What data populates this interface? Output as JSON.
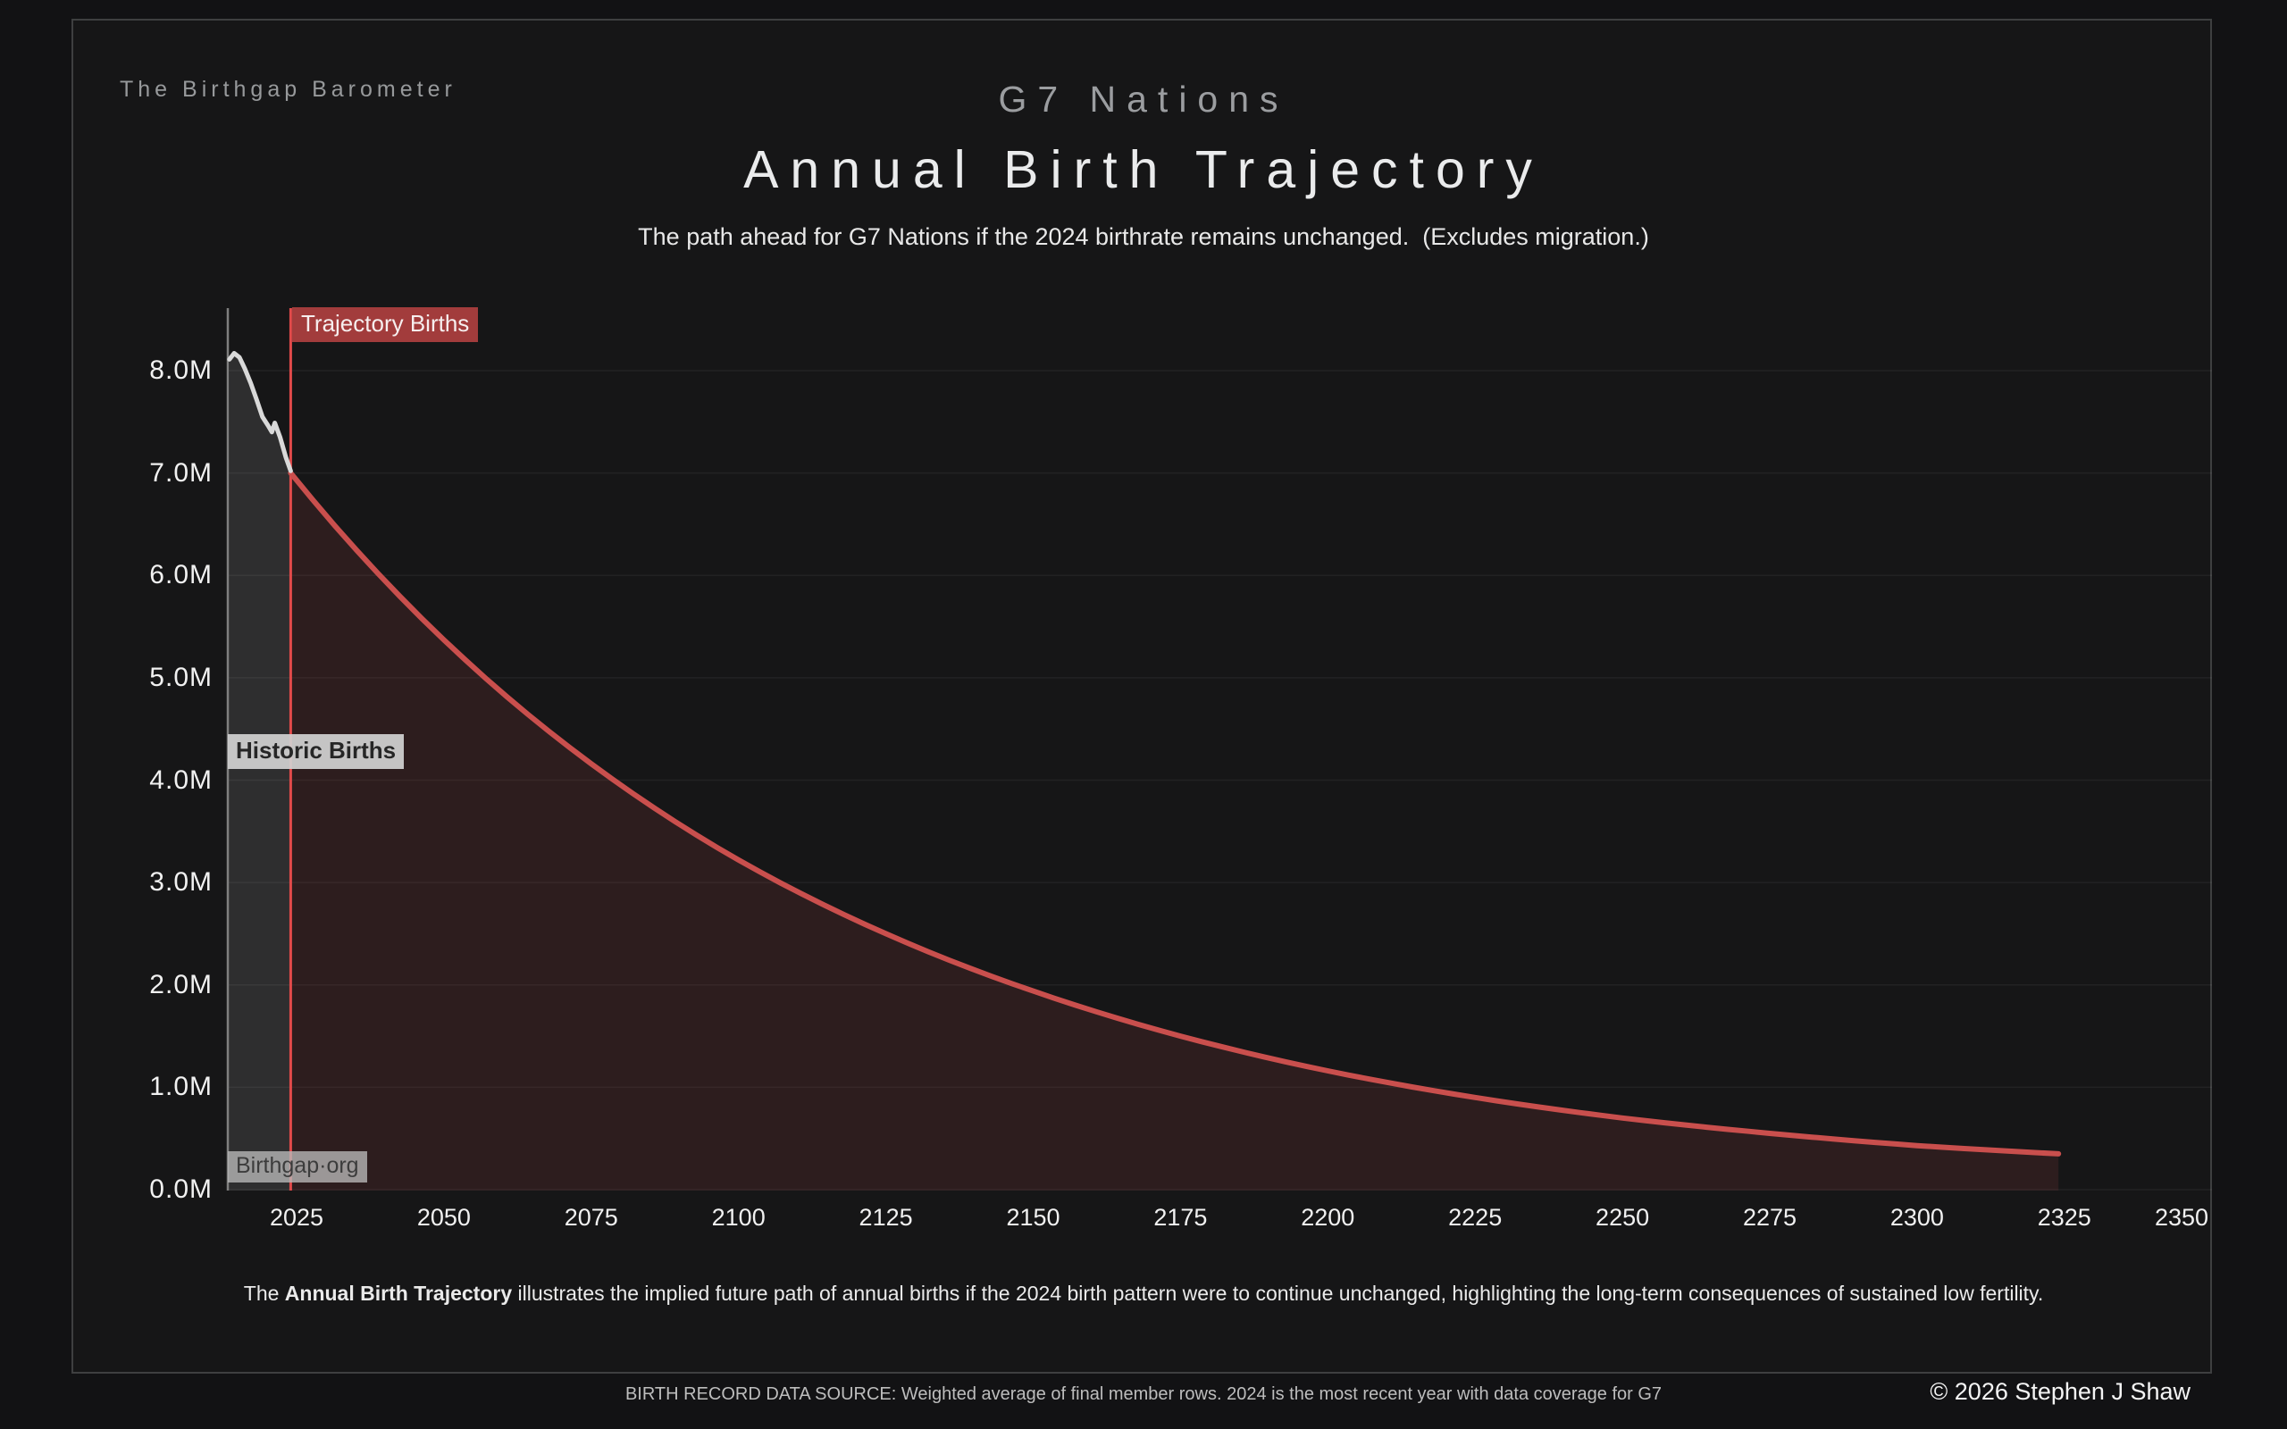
{
  "header": {
    "brand": "The Birthgap Barometer",
    "suptitle": "G7 Nations",
    "title": "Annual Birth Trajectory",
    "subtitle": "The path ahead for G7 Nations if the 2024 birthrate remains unchanged.  (Excludes migration.)"
  },
  "annotations": {
    "trajectory_label": "Trajectory Births",
    "historic_label": "Historic Births",
    "watermark": "Birthgap·org"
  },
  "description": {
    "prefix": "The ",
    "bold": "Annual Birth Trajectory",
    "suffix": " illustrates the implied future path of annual births if the 2024 birth pattern were to continue unchanged, highlighting the long-term consequences of sustained low fertility."
  },
  "footer": {
    "source": "BIRTH RECORD DATA SOURCE: Weighted average of final member rows. 2024 is the most recent year with data coverage for G7",
    "copyright": "© 2026 Stephen J Shaw"
  },
  "colors": {
    "page_bg": "#121214",
    "card_bg": "#161617",
    "card_border": "#3e3f40",
    "historic_line": "#d9d9d9",
    "trajectory_line": "#c94f4d",
    "marker_line": "#e14a4a",
    "historic_fill": "rgba(255,255,255,0.105)",
    "trajectory_fill": "rgba(206,82,78,0.125)",
    "grid_line": "rgba(255,255,255,0.055)",
    "axis_line": "#7f7f7f",
    "red_label_bg": "#a23c3c"
  },
  "chart_data": {
    "type": "area",
    "title": "Annual Birth Trajectory",
    "suptitle": "G7 Nations",
    "units": "millions of annual births",
    "grid": "horizontal",
    "legend_position": "inline-annotations",
    "xlim": [
      2013.5,
      2350
    ],
    "ylim": [
      0,
      8.6
    ],
    "marker_year": 2024,
    "x_ticks": [
      2025,
      2050,
      2075,
      2100,
      2125,
      2150,
      2175,
      2200,
      2225,
      2250,
      2275,
      2300,
      2325,
      2350
    ],
    "y_tick_values": [
      0,
      1,
      2,
      3,
      4,
      5,
      6,
      7,
      8
    ],
    "y_tick_labels": [
      "0.0M",
      "1.0M",
      "2.0M",
      "3.0M",
      "4.0M",
      "5.0M",
      "6.0M",
      "7.0M",
      "8.0M"
    ],
    "series": [
      {
        "name": "Historic Births",
        "style": "solid-white",
        "points": [
          [
            2013.6,
            8.11
          ],
          [
            2014.4,
            8.17
          ],
          [
            2015.3,
            8.13
          ],
          [
            2016.2,
            8.02
          ],
          [
            2017.2,
            7.88
          ],
          [
            2018.2,
            7.72
          ],
          [
            2019.2,
            7.55
          ],
          [
            2020.2,
            7.46
          ],
          [
            2020.8,
            7.4
          ],
          [
            2021.3,
            7.49
          ],
          [
            2022.2,
            7.35
          ],
          [
            2023.2,
            7.15
          ],
          [
            2024.0,
            7.02
          ]
        ]
      },
      {
        "name": "Trajectory Births",
        "style": "solid-red",
        "points": [
          [
            2024,
            7.0
          ],
          [
            2050,
            5.37
          ],
          [
            2075,
            4.16
          ],
          [
            2100,
            3.22
          ],
          [
            2125,
            2.5
          ],
          [
            2150,
            1.94
          ],
          [
            2175,
            1.5
          ],
          [
            2200,
            1.16
          ],
          [
            2225,
            0.9
          ],
          [
            2250,
            0.7
          ],
          [
            2275,
            0.55
          ],
          [
            2300,
            0.43
          ],
          [
            2324,
            0.35
          ]
        ]
      }
    ]
  }
}
